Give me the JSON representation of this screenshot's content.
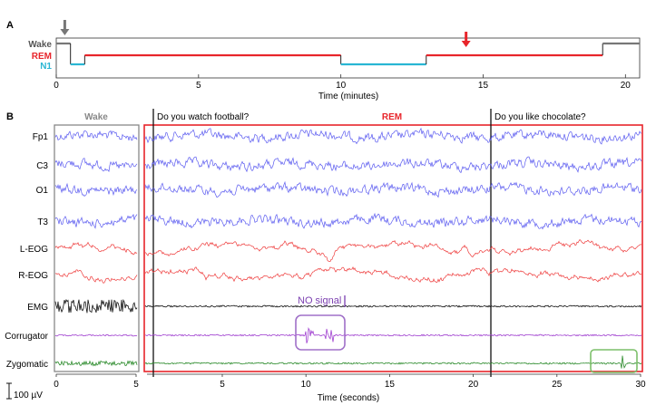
{
  "panel_a": {
    "label": "A",
    "stage_labels": {
      "wake": "Wake",
      "rem": "REM",
      "n1": "N1"
    },
    "xlabel": "Time (minutes)",
    "xticks": [
      "0",
      "5",
      "10",
      "15",
      "20"
    ]
  },
  "panel_b": {
    "label": "B",
    "wake_label": "Wake",
    "rem_label": "REM",
    "question1": "Do you watch football?",
    "question2": "Do you like chocolate?",
    "channels": [
      "Fp1",
      "C3",
      "O1",
      "T3",
      "L-EOG",
      "R-EOG",
      "EMG",
      "Corrugator",
      "Zygomatic"
    ],
    "annotation": "NO signal",
    "scale_bar": "100 µV",
    "xlabel": "Time (seconds)",
    "wake_ticks": [
      "0",
      "5"
    ],
    "main_ticks": [
      "5",
      "10",
      "15",
      "20",
      "25",
      "30"
    ]
  },
  "colors": {
    "eeg": "#5b5bf0",
    "eog": "#ee3b3b",
    "emg": "#111111",
    "corrugator": "#a040d0",
    "zygomatic": "#2a8a2a",
    "rem": "#e8252b",
    "n1": "#29b6d3",
    "wake": "#777777",
    "box_purple": "#a070c8",
    "box_green": "#7cbf6a"
  },
  "chart_data": [
    {
      "type": "line",
      "title": "",
      "xlabel": "Time (minutes)",
      "xlim": [
        0,
        20.5
      ],
      "ylabels": [
        "Wake",
        "REM",
        "N1"
      ],
      "hypnogram": [
        {
          "stage": "Wake",
          "start": 0.0,
          "end": 0.5
        },
        {
          "stage": "N1",
          "start": 0.5,
          "end": 1.0
        },
        {
          "stage": "REM",
          "start": 1.0,
          "end": 10.0
        },
        {
          "stage": "N1",
          "start": 10.0,
          "end": 13.0
        },
        {
          "stage": "REM",
          "start": 13.0,
          "end": 19.2
        },
        {
          "stage": "Wake",
          "start": 19.2,
          "end": 20.5
        }
      ],
      "markers": [
        {
          "stage": "Wake",
          "time": 0.3,
          "color": "#777777"
        },
        {
          "stage": "REM",
          "time": 14.4,
          "color": "#e8252b"
        }
      ]
    },
    {
      "type": "line",
      "title": "",
      "xlabel": "Time (seconds)",
      "wake_xlim": [
        0,
        5
      ],
      "rem_xlim": [
        0.5,
        30
      ],
      "events": [
        {
          "label": "Do you watch football?",
          "time": 0.8
        },
        {
          "label": "Do you like chocolate?",
          "time": 21.0
        }
      ],
      "series": [
        "Fp1",
        "C3",
        "O1",
        "T3",
        "L-EOG",
        "R-EOG",
        "EMG",
        "Corrugator",
        "Zygomatic"
      ],
      "highlights": [
        {
          "channel": "Corrugator",
          "x_range": [
            9.6,
            12.2
          ],
          "label": "NO signal"
        },
        {
          "channel": "Zygomatic",
          "x_range": [
            27.8,
            30.0
          ]
        }
      ]
    }
  ]
}
